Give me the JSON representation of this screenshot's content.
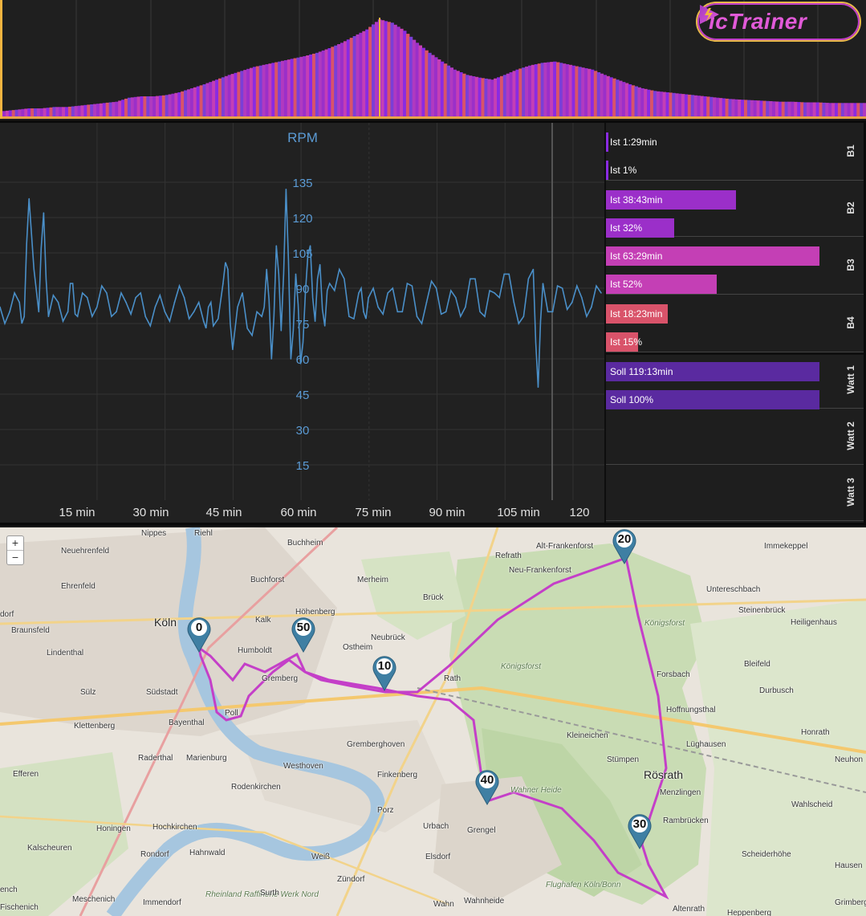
{
  "brand": {
    "name": "icTrainer",
    "logo_icon": "play-flash-icon",
    "colors": {
      "pink": "#e15ad8",
      "gold": "#e8b84a"
    }
  },
  "elevation": {
    "values": [
      8,
      10,
      12,
      12,
      14,
      14,
      16,
      18,
      20,
      22,
      28,
      30,
      30,
      32,
      36,
      42,
      48,
      55,
      62,
      68,
      74,
      78,
      82,
      86,
      90,
      95,
      102,
      110,
      120,
      130,
      145,
      140,
      128,
      110,
      95,
      82,
      70,
      62,
      58,
      55,
      62,
      70,
      76,
      80,
      82,
      78,
      74,
      70,
      62,
      55,
      48,
      42,
      38,
      36,
      34,
      32,
      30,
      28,
      26,
      25,
      24,
      23,
      22,
      22,
      21,
      21,
      20,
      20,
      20,
      20
    ]
  },
  "rpm_chart": {
    "y_axis_label": "RPM",
    "y_ticks": [
      "135",
      "120",
      "105",
      "90",
      "75",
      "60",
      "45",
      "30",
      "15"
    ],
    "x_ticks": [
      "15 min",
      "30 min",
      "45 min",
      "60 min",
      "75 min",
      "90 min",
      "105 min",
      "120"
    ],
    "line_color": "#4a8fc8"
  },
  "chart_data": {
    "type": "line",
    "title": "",
    "xlabel": "",
    "ylabel": "RPM",
    "ylim": [
      0,
      150
    ],
    "xlim": [
      0,
      124
    ],
    "grid": true,
    "x_unit": "min",
    "x": [
      0,
      2,
      4,
      5,
      6,
      8,
      9,
      10,
      12,
      14,
      15,
      16,
      18,
      20,
      22,
      24,
      26,
      28,
      30,
      32,
      34,
      36,
      38,
      40,
      42,
      43,
      44,
      46,
      47,
      48,
      50,
      52,
      54,
      55,
      56,
      57,
      58,
      59,
      60,
      61,
      62,
      63,
      64,
      65,
      66,
      67,
      68,
      70,
      72,
      74,
      75,
      76,
      78,
      80,
      82,
      84,
      86,
      88,
      90,
      92,
      94,
      96,
      98,
      100,
      102,
      104,
      106,
      108,
      110,
      111,
      112,
      114,
      116,
      118,
      120,
      122,
      124
    ],
    "values": [
      82,
      80,
      84,
      78,
      128,
      80,
      122,
      78,
      84,
      80,
      92,
      78,
      86,
      82,
      88,
      80,
      84,
      86,
      78,
      82,
      80,
      84,
      86,
      80,
      76,
      82,
      74,
      92,
      98,
      64,
      88,
      70,
      78,
      98,
      60,
      108,
      72,
      132,
      60,
      96,
      58,
      88,
      108,
      76,
      100,
      74,
      92,
      98,
      78,
      88,
      80,
      86,
      82,
      88,
      80,
      92,
      78,
      84,
      90,
      80,
      86,
      82,
      94,
      78,
      88,
      96,
      84,
      78,
      98,
      48,
      92,
      80,
      90,
      84,
      86,
      82,
      88
    ]
  },
  "zones": [
    {
      "label": "B1",
      "bars": [
        {
          "text": "Ist 1:29min",
          "pct": 1.2,
          "color": "#8a2be2"
        },
        {
          "text": "Ist 1%",
          "pct": 1,
          "color": "#8a2be2"
        }
      ]
    },
    {
      "label": "B2",
      "bars": [
        {
          "text": "Ist 38:43min",
          "pct": 61,
          "color": "#9b2fc9"
        },
        {
          "text": "Ist 32%",
          "pct": 32,
          "color": "#9b2fc9"
        }
      ]
    },
    {
      "label": "B3",
      "bars": [
        {
          "text": "Ist 63:29min",
          "pct": 100,
          "color": "#c43fb5"
        },
        {
          "text": "Ist 52%",
          "pct": 52,
          "color": "#c43fb5"
        }
      ]
    },
    {
      "label": "B4",
      "bars": [
        {
          "text": "Ist 18:23min",
          "pct": 29,
          "color": "#d9536a"
        },
        {
          "text": "Ist 15%",
          "pct": 15,
          "color": "#d9536a"
        }
      ]
    },
    {
      "label": "Watt 1",
      "bars": [
        {
          "text": "Soll 119:13min",
          "pct": 100,
          "color": "#5a2aa0"
        },
        {
          "text": "Soll 100%",
          "pct": 100,
          "color": "#5a2aa0"
        }
      ]
    },
    {
      "label": "Watt 2",
      "bars": []
    },
    {
      "label": "Watt 3",
      "bars": []
    }
  ],
  "map": {
    "zoom_in": "+",
    "zoom_out": "−",
    "route_color": "#c43fc8",
    "markers": [
      "0",
      "10",
      "20",
      "30",
      "40",
      "50"
    ],
    "places": [
      "Nippes",
      "Riehl",
      "Buchheim",
      "Neuehrenfeld",
      "Ehrenfeld",
      "Buchforst",
      "Merheim",
      "Refrath",
      "Alt-Frankenforst",
      "Neu-Frankenforst",
      "Immekeppel",
      "Köln",
      "Kalk",
      "Höhenberg",
      "Brück",
      "Untereschbach",
      "Steinenbrück",
      "Heiligenhaus",
      "dorf",
      "Braunsfeld",
      "Lindenthal",
      "Humboldt",
      "Ostheim",
      "Neubrück",
      "Königsforst",
      "Königsforst",
      "Forsbach",
      "Bleifeld",
      "Gremberg",
      "Rath",
      "Durbusch",
      "Sülz",
      "Südstadt",
      "Poll",
      "Hoffnungsthal",
      "Klettenberg",
      "Bayenthal",
      "Kleineichen",
      "Lüghausen",
      "Honrath",
      "Gremberghoven",
      "Stümpen",
      "Neuhon",
      "Raderthal",
      "Marienburg",
      "Westhoven",
      "Rösrath",
      "Efferen",
      "Finkenberg",
      "Menzlingen",
      "Wahlscheid",
      "Rodenkirchen",
      "Wahner Heide",
      "Porz",
      "Rambrücken",
      "Honingen",
      "Hochkirchen",
      "Urbach",
      "Grengel",
      "Kalscheuren",
      "Rondorf",
      "Hahnwald",
      "Weiß",
      "Elsdorf",
      "Scheiderhöhe",
      "Hausen",
      "Zündorf",
      "Meschenich",
      "Immendorf",
      "Rheinland Raffinerie Werk Nord",
      "Surth",
      "Wahnheide",
      "Wahn",
      "Flughafen Köln/Bonn",
      "Altenrath",
      "Heppenberg",
      "Grimberg",
      "ench",
      "Fischenich"
    ]
  }
}
